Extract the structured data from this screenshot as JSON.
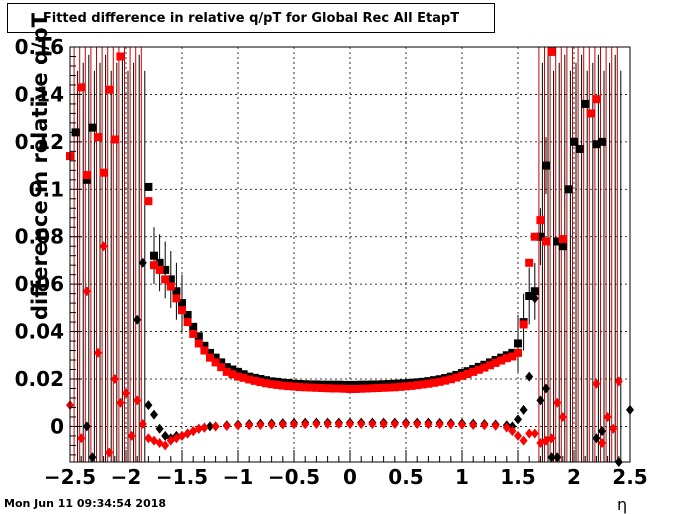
{
  "chart_data": {
    "type": "scatter",
    "title": "Fitted difference in relative q/pT for Global Rec All EtapT",
    "xlabel": "η",
    "ylabel": "difference in relative q/pT",
    "xlim": [
      -2.5,
      2.5
    ],
    "ylim": [
      -0.015,
      0.16
    ],
    "grid": true,
    "x_ticks": [
      "−2.5",
      "−2",
      "−1.5",
      "−1",
      "−0.5",
      "0",
      "0.5",
      "1",
      "1.5",
      "2",
      "2.5"
    ],
    "y_ticks": [
      "0",
      "0.02",
      "0.04",
      "0.06",
      "0.08",
      "0.1",
      "0.12",
      "0.14",
      "0.16"
    ],
    "series": [
      {
        "marker": "square",
        "color": "#000000",
        "points": [
          [
            -2.45,
            0.124
          ],
          [
            -2.35,
            0.104
          ],
          [
            -2.3,
            0.126
          ],
          [
            -1.8,
            0.101
          ],
          [
            -1.75,
            0.072
          ],
          [
            -1.7,
            0.069
          ],
          [
            -1.65,
            0.066
          ],
          [
            -1.6,
            0.062
          ],
          [
            -1.55,
            0.057
          ],
          [
            -1.5,
            0.052
          ],
          [
            -1.45,
            0.047
          ],
          [
            -1.4,
            0.042
          ],
          [
            -1.35,
            0.038
          ],
          [
            -1.3,
            0.034
          ],
          [
            -1.25,
            0.031
          ],
          [
            -1.2,
            0.029
          ],
          [
            -1.15,
            0.027
          ],
          [
            -1.1,
            0.025
          ],
          [
            -1.05,
            0.024
          ],
          [
            -1.0,
            0.023
          ],
          [
            -0.95,
            0.022
          ],
          [
            -0.9,
            0.021
          ],
          [
            -0.85,
            0.0205
          ],
          [
            -0.8,
            0.02
          ],
          [
            -0.75,
            0.0195
          ],
          [
            -0.7,
            0.019
          ],
          [
            -0.65,
            0.0188
          ],
          [
            -0.6,
            0.0185
          ],
          [
            -0.55,
            0.0183
          ],
          [
            -0.5,
            0.018
          ],
          [
            -0.45,
            0.0179
          ],
          [
            -0.4,
            0.0178
          ],
          [
            -0.35,
            0.0177
          ],
          [
            -0.3,
            0.0177
          ],
          [
            -0.25,
            0.0176
          ],
          [
            -0.2,
            0.0176
          ],
          [
            -0.15,
            0.0176
          ],
          [
            -0.1,
            0.0176
          ],
          [
            -0.05,
            0.0175
          ],
          [
            0.0,
            0.0175
          ],
          [
            0.05,
            0.0175
          ],
          [
            0.1,
            0.0176
          ],
          [
            0.15,
            0.0176
          ],
          [
            0.2,
            0.0177
          ],
          [
            0.25,
            0.0177
          ],
          [
            0.3,
            0.0178
          ],
          [
            0.35,
            0.0179
          ],
          [
            0.4,
            0.018
          ],
          [
            0.45,
            0.0181
          ],
          [
            0.5,
            0.0182
          ],
          [
            0.55,
            0.0184
          ],
          [
            0.6,
            0.0186
          ],
          [
            0.65,
            0.0188
          ],
          [
            0.7,
            0.0191
          ],
          [
            0.75,
            0.0195
          ],
          [
            0.8,
            0.0199
          ],
          [
            0.85,
            0.0204
          ],
          [
            0.9,
            0.021
          ],
          [
            0.95,
            0.0217
          ],
          [
            1.0,
            0.0225
          ],
          [
            1.05,
            0.0233
          ],
          [
            1.1,
            0.0242
          ],
          [
            1.15,
            0.0251
          ],
          [
            1.2,
            0.026
          ],
          [
            1.25,
            0.027
          ],
          [
            1.3,
            0.028
          ],
          [
            1.35,
            0.029
          ],
          [
            1.4,
            0.03
          ],
          [
            1.45,
            0.031
          ],
          [
            1.5,
            0.035
          ],
          [
            1.55,
            0.044
          ],
          [
            1.6,
            0.055
          ],
          [
            1.65,
            0.057
          ],
          [
            1.7,
            0.08
          ],
          [
            1.75,
            0.11
          ],
          [
            1.8,
            0.158
          ],
          [
            1.85,
            0.078
          ],
          [
            1.9,
            0.076
          ],
          [
            1.95,
            0.1
          ],
          [
            2.0,
            0.12
          ],
          [
            2.05,
            0.117
          ],
          [
            2.1,
            0.136
          ],
          [
            2.2,
            0.119
          ],
          [
            2.25,
            0.12
          ]
        ]
      },
      {
        "marker": "square",
        "color": "#ff0000",
        "points": [
          [
            -2.5,
            0.114
          ],
          [
            -2.4,
            0.143
          ],
          [
            -2.35,
            0.106
          ],
          [
            -2.25,
            0.122
          ],
          [
            -2.2,
            0.107
          ],
          [
            -2.15,
            0.142
          ],
          [
            -2.1,
            0.121
          ],
          [
            -2.05,
            0.156
          ],
          [
            -1.8,
            0.095
          ],
          [
            -1.75,
            0.068
          ],
          [
            -1.7,
            0.066
          ],
          [
            -1.65,
            0.062
          ],
          [
            -1.6,
            0.059
          ],
          [
            -1.55,
            0.054
          ],
          [
            -1.5,
            0.049
          ],
          [
            -1.45,
            0.044
          ],
          [
            -1.4,
            0.039
          ],
          [
            -1.35,
            0.035
          ],
          [
            -1.3,
            0.032
          ],
          [
            -1.25,
            0.029
          ],
          [
            -1.2,
            0.027
          ],
          [
            -1.15,
            0.025
          ],
          [
            -1.1,
            0.023
          ],
          [
            -1.05,
            0.022
          ],
          [
            -1.0,
            0.021
          ],
          [
            -0.95,
            0.0205
          ],
          [
            -0.9,
            0.0198
          ],
          [
            -0.85,
            0.0192
          ],
          [
            -0.8,
            0.0187
          ],
          [
            -0.75,
            0.0182
          ],
          [
            -0.7,
            0.0178
          ],
          [
            -0.65,
            0.0175
          ],
          [
            -0.6,
            0.0172
          ],
          [
            -0.55,
            0.017
          ],
          [
            -0.5,
            0.0168
          ],
          [
            -0.45,
            0.0166
          ],
          [
            -0.4,
            0.0165
          ],
          [
            -0.35,
            0.0164
          ],
          [
            -0.3,
            0.0163
          ],
          [
            -0.25,
            0.0162
          ],
          [
            -0.2,
            0.0161
          ],
          [
            -0.15,
            0.016
          ],
          [
            -0.1,
            0.016
          ],
          [
            -0.05,
            0.0159
          ],
          [
            0.0,
            0.0158
          ],
          [
            0.05,
            0.0158
          ],
          [
            0.1,
            0.0159
          ],
          [
            0.15,
            0.016
          ],
          [
            0.2,
            0.0161
          ],
          [
            0.25,
            0.0162
          ],
          [
            0.3,
            0.0163
          ],
          [
            0.35,
            0.0164
          ],
          [
            0.4,
            0.0165
          ],
          [
            0.45,
            0.0167
          ],
          [
            0.5,
            0.0169
          ],
          [
            0.55,
            0.0171
          ],
          [
            0.6,
            0.0174
          ],
          [
            0.65,
            0.0177
          ],
          [
            0.7,
            0.018
          ],
          [
            0.75,
            0.0184
          ],
          [
            0.8,
            0.0188
          ],
          [
            0.85,
            0.0193
          ],
          [
            0.9,
            0.0199
          ],
          [
            0.95,
            0.0206
          ],
          [
            1.0,
            0.0213
          ],
          [
            1.05,
            0.0221
          ],
          [
            1.1,
            0.023
          ],
          [
            1.15,
            0.0239
          ],
          [
            1.2,
            0.0248
          ],
          [
            1.25,
            0.0258
          ],
          [
            1.3,
            0.0268
          ],
          [
            1.35,
            0.0278
          ],
          [
            1.4,
            0.0288
          ],
          [
            1.45,
            0.0295
          ],
          [
            1.5,
            0.031
          ],
          [
            1.55,
            0.043
          ],
          [
            1.6,
            0.069
          ],
          [
            1.65,
            0.08
          ],
          [
            1.7,
            0.087
          ],
          [
            1.75,
            0.078
          ],
          [
            1.8,
            0.158
          ],
          [
            1.9,
            0.079
          ],
          [
            2.15,
            0.132
          ],
          [
            2.2,
            0.138
          ]
        ]
      },
      {
        "marker": "diamond",
        "color": "#000000",
        "points": [
          [
            -2.35,
            0.0
          ],
          [
            -2.3,
            -0.013
          ],
          [
            -1.9,
            0.045
          ],
          [
            -1.85,
            0.069
          ],
          [
            -1.8,
            0.009
          ],
          [
            -1.75,
            0.005
          ],
          [
            -1.7,
            -0.001
          ],
          [
            -1.65,
            -0.004
          ],
          [
            -1.6,
            -0.005
          ],
          [
            -1.55,
            -0.004
          ],
          [
            -1.5,
            -0.004
          ],
          [
            -1.45,
            -0.003
          ],
          [
            -1.4,
            -0.002
          ],
          [
            -1.35,
            -0.001
          ],
          [
            -1.3,
            -0.0005
          ],
          [
            -1.25,
            0.0
          ],
          [
            -1.2,
            0.0
          ],
          [
            -1.1,
            0.0005
          ],
          [
            -1.0,
            0.0008
          ],
          [
            -0.9,
            0.001
          ],
          [
            -0.8,
            0.0012
          ],
          [
            -0.7,
            0.0013
          ],
          [
            -0.6,
            0.0014
          ],
          [
            -0.5,
            0.0015
          ],
          [
            -0.4,
            0.0016
          ],
          [
            -0.3,
            0.0016
          ],
          [
            -0.2,
            0.0016
          ],
          [
            -0.1,
            0.0016
          ],
          [
            0.0,
            0.0016
          ],
          [
            0.1,
            0.0016
          ],
          [
            0.2,
            0.0016
          ],
          [
            0.3,
            0.0016
          ],
          [
            0.4,
            0.0016
          ],
          [
            0.5,
            0.0016
          ],
          [
            0.6,
            0.0016
          ],
          [
            0.7,
            0.0016
          ],
          [
            0.8,
            0.0015
          ],
          [
            0.9,
            0.0014
          ],
          [
            1.0,
            0.0013
          ],
          [
            1.1,
            0.0012
          ],
          [
            1.2,
            0.001
          ],
          [
            1.3,
            0.0008
          ],
          [
            1.4,
            0.0005
          ],
          [
            1.45,
            0.0
          ],
          [
            1.5,
            0.003
          ],
          [
            1.55,
            0.007
          ],
          [
            1.6,
            0.021
          ],
          [
            1.65,
            0.054
          ],
          [
            1.7,
            0.011
          ],
          [
            1.75,
            0.016
          ],
          [
            1.8,
            -0.013
          ],
          [
            1.85,
            -0.013
          ],
          [
            2.2,
            -0.005
          ],
          [
            2.25,
            -0.002
          ],
          [
            2.4,
            -0.015
          ],
          [
            2.5,
            0.007
          ]
        ]
      },
      {
        "marker": "diamond",
        "color": "#ff0000",
        "points": [
          [
            -2.5,
            0.009
          ],
          [
            -2.4,
            -0.005
          ],
          [
            -2.35,
            0.057
          ],
          [
            -2.25,
            0.031
          ],
          [
            -2.2,
            0.076
          ],
          [
            -2.15,
            -0.011
          ],
          [
            -2.1,
            0.02
          ],
          [
            -2.05,
            0.01
          ],
          [
            -2.0,
            0.014
          ],
          [
            -1.95,
            -0.004
          ],
          [
            -1.9,
            0.011
          ],
          [
            -1.85,
            0.001
          ],
          [
            -1.8,
            -0.005
          ],
          [
            -1.75,
            -0.006
          ],
          [
            -1.7,
            -0.007
          ],
          [
            -1.65,
            -0.008
          ],
          [
            -1.6,
            -0.006
          ],
          [
            -1.55,
            -0.005
          ],
          [
            -1.5,
            -0.004
          ],
          [
            -1.45,
            -0.003
          ],
          [
            -1.4,
            -0.002
          ],
          [
            -1.35,
            -0.001
          ],
          [
            -1.3,
            -0.0005
          ],
          [
            -1.2,
            0.0
          ],
          [
            -1.1,
            0.0002
          ],
          [
            -1.0,
            0.0004
          ],
          [
            -0.9,
            0.0005
          ],
          [
            -0.8,
            0.0006
          ],
          [
            -0.7,
            0.0007
          ],
          [
            -0.6,
            0.0008
          ],
          [
            -0.5,
            0.0009
          ],
          [
            -0.4,
            0.0009
          ],
          [
            -0.3,
            0.001
          ],
          [
            -0.2,
            0.001
          ],
          [
            -0.1,
            0.001
          ],
          [
            0.0,
            0.001
          ],
          [
            0.1,
            0.001
          ],
          [
            0.2,
            0.001
          ],
          [
            0.3,
            0.001
          ],
          [
            0.4,
            0.001
          ],
          [
            0.5,
            0.001
          ],
          [
            0.6,
            0.001
          ],
          [
            0.7,
            0.0009
          ],
          [
            0.8,
            0.0009
          ],
          [
            0.9,
            0.0008
          ],
          [
            1.0,
            0.0007
          ],
          [
            1.1,
            0.0006
          ],
          [
            1.2,
            0.0005
          ],
          [
            1.3,
            0.0003
          ],
          [
            1.4,
            -0.0005
          ],
          [
            1.45,
            -0.002
          ],
          [
            1.5,
            -0.004
          ],
          [
            1.55,
            -0.006
          ],
          [
            1.6,
            -0.003
          ],
          [
            1.65,
            -0.003
          ],
          [
            1.7,
            -0.007
          ],
          [
            1.75,
            -0.006
          ],
          [
            1.8,
            -0.005
          ],
          [
            1.85,
            0.01
          ],
          [
            1.9,
            0.004
          ],
          [
            2.2,
            0.018
          ],
          [
            2.25,
            -0.007
          ],
          [
            2.3,
            0.004
          ],
          [
            2.35,
            -0.001
          ],
          [
            2.4,
            0.019
          ]
        ]
      }
    ],
    "error_bars_x": [
      -2.45,
      -2.4,
      -2.35,
      -2.3,
      -2.25,
      -2.2,
      -2.15,
      -2.1,
      -2.05,
      -2.0,
      -1.95,
      -1.9,
      -1.85,
      1.7,
      1.75,
      1.8,
      1.85,
      1.9,
      1.95,
      2.0,
      2.05,
      2.1,
      2.15,
      2.2,
      2.25,
      2.3,
      2.35,
      2.4
    ]
  },
  "header": {
    "timestamp": "Mon Jun 11 09:34:54 2018"
  }
}
